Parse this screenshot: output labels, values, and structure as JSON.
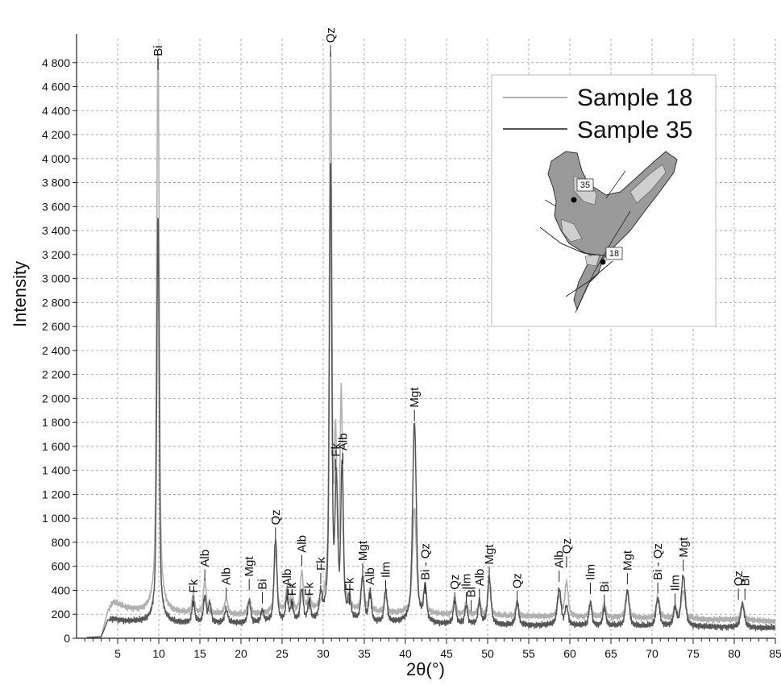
{
  "chart_data": {
    "type": "line",
    "xlabel": "2θ(°)",
    "ylabel": "Intensity",
    "xlim": [
      0,
      85
    ],
    "ylim": [
      0,
      5000
    ],
    "x_ticks": [
      5,
      10,
      15,
      20,
      25,
      30,
      35,
      40,
      45,
      50,
      55,
      60,
      65,
      70,
      75,
      80,
      85
    ],
    "y_ticks": [
      0,
      200,
      400,
      600,
      800,
      1000,
      1200,
      1400,
      1600,
      1800,
      2000,
      2200,
      2400,
      2600,
      2800,
      3000,
      3200,
      3400,
      3600,
      3800,
      4000,
      4200,
      4400,
      4600,
      4800
    ],
    "y_tick_labels": [
      "0",
      "200",
      "400",
      "600",
      "800",
      "1 000",
      "1 200",
      "1 400",
      "1 600",
      "1 800",
      "2 000",
      "2 200",
      "2 400",
      "2 600",
      "2 800",
      "3 000",
      "3 200",
      "3 400",
      "3 600",
      "3 800",
      "4 000",
      "4 200",
      "4 400",
      "4 600",
      "4 800"
    ],
    "grid": true,
    "legend_position": "top-right",
    "series": [
      {
        "name": "Sample 18",
        "color": "#b0b0b0",
        "baseline": [
          [
            0,
            0
          ],
          [
            3,
            10
          ],
          [
            3.8,
            230
          ],
          [
            4.5,
            300
          ],
          [
            6,
            250
          ],
          [
            8,
            220
          ],
          [
            9.3,
            215
          ],
          [
            12,
            205
          ],
          [
            20,
            195
          ],
          [
            30,
            215
          ],
          [
            36,
            205
          ],
          [
            40,
            200
          ],
          [
            50,
            185
          ],
          [
            60,
            175
          ],
          [
            70,
            165
          ],
          [
            80,
            150
          ],
          [
            85,
            140
          ]
        ],
        "peaks": [
          [
            9.9,
            4720,
            0.14
          ],
          [
            14.2,
            150,
            0.15
          ],
          [
            15.6,
            280,
            0.15
          ],
          [
            18.2,
            120,
            0.18
          ],
          [
            21.0,
            120,
            0.16
          ],
          [
            24.2,
            520,
            0.16
          ],
          [
            25.6,
            180,
            0.15
          ],
          [
            26.2,
            140,
            0.15
          ],
          [
            27.4,
            320,
            0.16
          ],
          [
            28.3,
            130,
            0.15
          ],
          [
            30.9,
            4600,
            0.13
          ],
          [
            31.5,
            1250,
            0.14
          ],
          [
            32.2,
            1750,
            0.14
          ],
          [
            34.8,
            280,
            0.18
          ],
          [
            35.7,
            170,
            0.15
          ],
          [
            37.6,
            150,
            0.16
          ],
          [
            41.1,
            880,
            0.2
          ],
          [
            42.4,
            220,
            0.16
          ],
          [
            46.0,
            140,
            0.15
          ],
          [
            47.4,
            100,
            0.15
          ],
          [
            49.0,
            120,
            0.15
          ],
          [
            50.2,
            230,
            0.18
          ],
          [
            53.6,
            110,
            0.16
          ],
          [
            58.7,
            170,
            0.2
          ],
          [
            59.6,
            280,
            0.18
          ],
          [
            62.5,
            120,
            0.16
          ],
          [
            64.2,
            110,
            0.16
          ],
          [
            67.0,
            200,
            0.2
          ],
          [
            70.7,
            170,
            0.2
          ],
          [
            72.8,
            90,
            0.16
          ],
          [
            73.8,
            230,
            0.22
          ],
          [
            81.0,
            140,
            0.2
          ]
        ]
      },
      {
        "name": "Sample 35",
        "color": "#555555",
        "baseline": [
          [
            0,
            0
          ],
          [
            3,
            10
          ],
          [
            3.8,
            150
          ],
          [
            4.5,
            160
          ],
          [
            6,
            140
          ],
          [
            9.3,
            130
          ],
          [
            12,
            125
          ],
          [
            20,
            120
          ],
          [
            30,
            125
          ],
          [
            40,
            115
          ],
          [
            50,
            110
          ],
          [
            60,
            100
          ],
          [
            70,
            95
          ],
          [
            80,
            90
          ],
          [
            85,
            85
          ]
        ],
        "peaks": [
          [
            9.9,
            3380,
            0.13
          ],
          [
            14.2,
            170,
            0.15
          ],
          [
            15.6,
            210,
            0.15
          ],
          [
            16.2,
            160,
            0.15
          ],
          [
            18.2,
            110,
            0.18
          ],
          [
            21.0,
            180,
            0.16
          ],
          [
            22.6,
            100,
            0.15
          ],
          [
            24.2,
            690,
            0.16
          ],
          [
            25.6,
            190,
            0.15
          ],
          [
            26.2,
            150,
            0.15
          ],
          [
            27.4,
            260,
            0.16
          ],
          [
            28.3,
            160,
            0.15
          ],
          [
            29.7,
            200,
            0.15
          ],
          [
            30.9,
            3780,
            0.13
          ],
          [
            31.6,
            1050,
            0.14
          ],
          [
            32.3,
            1250,
            0.14
          ],
          [
            33.2,
            180,
            0.15
          ],
          [
            34.8,
            360,
            0.18
          ],
          [
            35.7,
            220,
            0.15
          ],
          [
            37.6,
            270,
            0.16
          ],
          [
            41.1,
            1680,
            0.2
          ],
          [
            42.4,
            280,
            0.16
          ],
          [
            46.0,
            190,
            0.15
          ],
          [
            47.4,
            150,
            0.15
          ],
          [
            49.0,
            180,
            0.15
          ],
          [
            50.2,
            390,
            0.18
          ],
          [
            53.6,
            190,
            0.16
          ],
          [
            58.7,
            300,
            0.2
          ],
          [
            59.6,
            150,
            0.18
          ],
          [
            62.5,
            190,
            0.16
          ],
          [
            64.2,
            150,
            0.16
          ],
          [
            67.0,
            300,
            0.2
          ],
          [
            70.7,
            230,
            0.2
          ],
          [
            72.8,
            140,
            0.16
          ],
          [
            73.8,
            420,
            0.22
          ],
          [
            81.0,
            190,
            0.2
          ]
        ]
      }
    ],
    "annotations": [
      {
        "text": "Bi",
        "x": 9.9,
        "y": 4740
      },
      {
        "text": "Qz",
        "x": 30.9,
        "y": 4850
      },
      {
        "text": "Fk",
        "x": 14.2,
        "y": 265
      },
      {
        "text": "Alb",
        "x": 15.6,
        "y": 480
      },
      {
        "text": "Alb",
        "x": 18.2,
        "y": 330
      },
      {
        "text": "Mgt",
        "x": 21.0,
        "y": 400
      },
      {
        "text": "Bi",
        "x": 22.6,
        "y": 290
      },
      {
        "text": "Qz",
        "x": 24.2,
        "y": 830
      },
      {
        "text": "Alb",
        "x": 25.6,
        "y": 320
      },
      {
        "text": "Fk",
        "x": 26.2,
        "y": 240
      },
      {
        "text": "Alb",
        "x": 27.4,
        "y": 600
      },
      {
        "text": "Fk",
        "x": 28.3,
        "y": 240
      },
      {
        "text": "Fk",
        "x": 29.7,
        "y": 450
      },
      {
        "text": "Fk",
        "x": 31.5,
        "y": 1400
      },
      {
        "text": "Alb",
        "x": 32.4,
        "y": 1450
      },
      {
        "text": "Fk",
        "x": 33.2,
        "y": 280
      },
      {
        "text": "Mgt",
        "x": 34.8,
        "y": 530
      },
      {
        "text": "Alb",
        "x": 35.7,
        "y": 330
      },
      {
        "text": "Ilm",
        "x": 37.6,
        "y": 390
      },
      {
        "text": "Mgt",
        "x": 41.1,
        "y": 1810
      },
      {
        "text": "Bi - Qz",
        "x": 42.4,
        "y": 370
      },
      {
        "text": "Qz",
        "x": 46.0,
        "y": 290
      },
      {
        "text": "Ilm",
        "x": 47.4,
        "y": 290
      },
      {
        "text": "Bi",
        "x": 48.0,
        "y": 225
      },
      {
        "text": "Alb",
        "x": 49.0,
        "y": 320
      },
      {
        "text": "Mgt",
        "x": 50.2,
        "y": 500
      },
      {
        "text": "Qz",
        "x": 53.6,
        "y": 300
      },
      {
        "text": "Alb",
        "x": 58.7,
        "y": 470
      },
      {
        "text": "Qz",
        "x": 59.6,
        "y": 590
      },
      {
        "text": "Ilm",
        "x": 62.5,
        "y": 370
      },
      {
        "text": "Bi",
        "x": 64.2,
        "y": 270
      },
      {
        "text": "Mgt",
        "x": 67.0,
        "y": 450
      },
      {
        "text": "Bi - Qz",
        "x": 70.7,
        "y": 370
      },
      {
        "text": "Ilm",
        "x": 72.8,
        "y": 280
      },
      {
        "text": "Mgt",
        "x": 73.8,
        "y": 560
      },
      {
        "text": "Qz",
        "x": 80.5,
        "y": 320
      },
      {
        "text": "Bi",
        "x": 81.3,
        "y": 320
      }
    ],
    "inset": {
      "sample_markers": [
        {
          "label": "35",
          "description": "upper-left arm of map"
        },
        {
          "label": "18",
          "description": "lower junction of map"
        }
      ],
      "colors": {
        "fill": "#9a9a9a",
        "light": "#cfcfcf",
        "outline": "#333333"
      }
    }
  }
}
